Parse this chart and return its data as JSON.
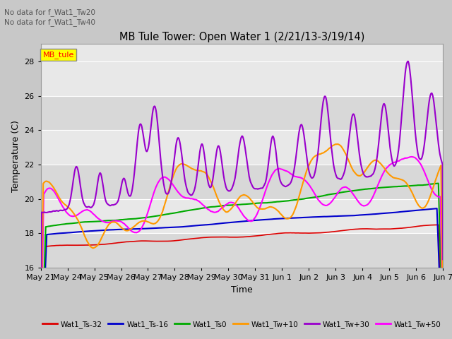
{
  "title": "MB Tule Tower: Open Water 1 (2/21/13-3/19/14)",
  "xlabel": "Time",
  "ylabel": "Temperature (C)",
  "annotation_lines": [
    "No data for f_Wat1_Tw20",
    "No data for f_Wat1_Tw40"
  ],
  "legend_label": "MB_tule",
  "ylim": [
    16.0,
    29.0
  ],
  "yticks": [
    16,
    18,
    20,
    22,
    24,
    26,
    28
  ],
  "plot_bg_color": "#e8e8e8",
  "fig_bg_color": "#c8c8c8",
  "series": {
    "Wat1_Ts-32": {
      "color": "#dd0000",
      "lw": 1.2
    },
    "Wat1_Ts-16": {
      "color": "#0000cc",
      "lw": 1.5
    },
    "Wat1_Ts0": {
      "color": "#00aa00",
      "lw": 1.5
    },
    "Wat1_Tw+10": {
      "color": "#ff9900",
      "lw": 1.5
    },
    "Wat1_Tw+30": {
      "color": "#9900cc",
      "lw": 1.5
    },
    "Wat1_Tw+50": {
      "color": "#ff00ff",
      "lw": 1.5
    }
  },
  "x_tick_labels": [
    "May 21",
    "May 24",
    "May 25",
    "May 26",
    "May 27",
    "May 28",
    "May 29",
    "May 30",
    "May 31",
    "Jun 1",
    "Jun 2",
    "Jun 3",
    "Jun 4",
    "Jun 5",
    "Jun 6",
    "Jun 7"
  ]
}
